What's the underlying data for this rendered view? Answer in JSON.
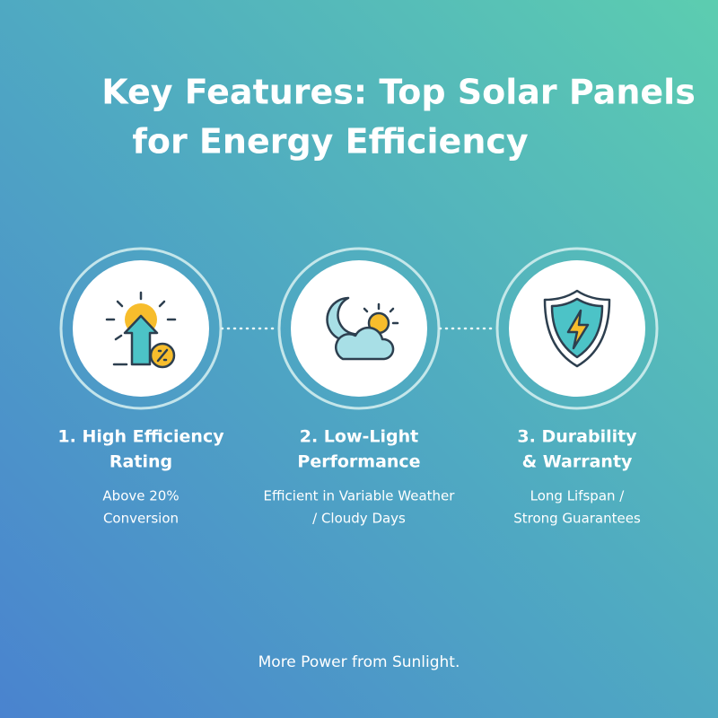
{
  "header": {
    "title_lines": [
      "Key Features: Top Solar Panels",
      "for Energy Efficiency"
    ]
  },
  "features": [
    {
      "title_lines": [
        "1. High Efficiency",
        "Rating"
      ],
      "description_lines": [
        "Above 20%",
        "Conversion"
      ]
    },
    {
      "title_lines": [
        "2. Low-Light",
        "Performance"
      ],
      "description_lines": [
        "Efficient in Variable Weather",
        "/ Cloudy Days"
      ]
    },
    {
      "title_lines": [
        "3. Durability",
        "& Warranty"
      ],
      "description_lines": [
        "Long Lifspan /",
        "Strong Guarantees"
      ]
    }
  ],
  "footer": {
    "tagline": "More Power from Sunlight."
  }
}
